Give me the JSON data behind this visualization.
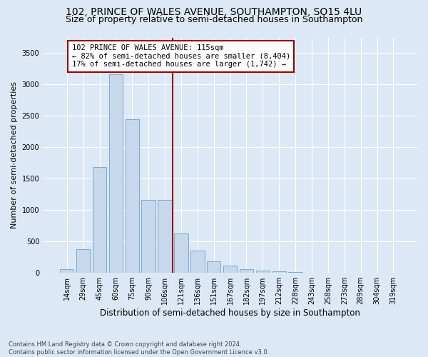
{
  "title": "102, PRINCE OF WALES AVENUE, SOUTHAMPTON, SO15 4LU",
  "subtitle": "Size of property relative to semi-detached houses in Southampton",
  "xlabel": "Distribution of semi-detached houses by size in Southampton",
  "ylabel": "Number of semi-detached properties",
  "footer": "Contains HM Land Registry data © Crown copyright and database right 2024.\nContains public sector information licensed under the Open Government Licence v3.0.",
  "categories": [
    "14sqm",
    "29sqm",
    "45sqm",
    "60sqm",
    "75sqm",
    "90sqm",
    "106sqm",
    "121sqm",
    "136sqm",
    "151sqm",
    "167sqm",
    "182sqm",
    "197sqm",
    "212sqm",
    "228sqm",
    "243sqm",
    "258sqm",
    "273sqm",
    "289sqm",
    "304sqm",
    "319sqm"
  ],
  "values": [
    55,
    380,
    1680,
    3160,
    2450,
    1160,
    1160,
    630,
    350,
    190,
    115,
    55,
    35,
    20,
    10,
    5,
    3,
    2,
    2,
    2,
    2
  ],
  "bar_color": "#c8d8ec",
  "bar_edge_color": "#7aaad0",
  "vline_index": 7,
  "annotation_text": "102 PRINCE OF WALES AVENUE: 115sqm\n← 82% of semi-detached houses are smaller (8,404)\n17% of semi-detached houses are larger (1,742) →",
  "vline_color": "#990000",
  "box_edge_color": "#990000",
  "ylim": [
    0,
    3750
  ],
  "yticks": [
    0,
    500,
    1000,
    1500,
    2000,
    2500,
    3000,
    3500
  ],
  "background_color": "#dce8f5",
  "plot_background": "#dce8f5",
  "grid_color": "#ffffff",
  "title_fontsize": 10,
  "subtitle_fontsize": 9,
  "tick_fontsize": 7,
  "ylabel_fontsize": 8,
  "xlabel_fontsize": 8.5,
  "annotation_fontsize": 7.5
}
